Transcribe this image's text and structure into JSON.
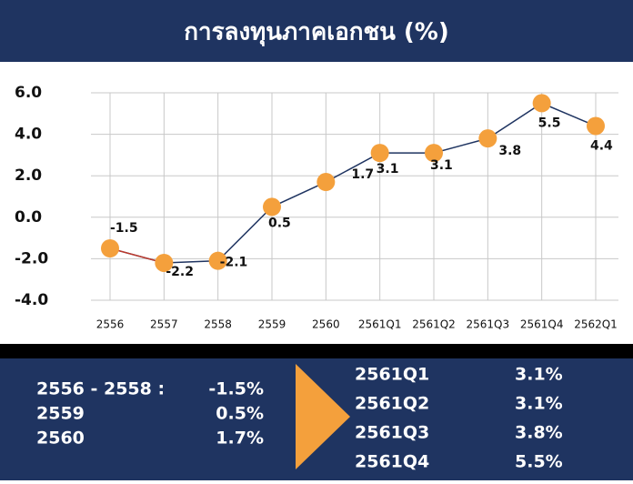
{
  "chart_data": {
    "type": "line",
    "title": "การลงทุนภาคเอกชน (%)",
    "categories": [
      "2556",
      "2557",
      "2558",
      "2559",
      "2560",
      "2561Q1",
      "2561Q2",
      "2561Q3",
      "2561Q4",
      "2562Q1"
    ],
    "values": [
      -1.5,
      -2.2,
      -2.1,
      0.5,
      1.7,
      3.1,
      3.1,
      3.8,
      5.5,
      4.4
    ],
    "color": "#1f3461",
    "first_segment_color": "#c0392b",
    "marker_color": "#f4a03c",
    "ylim": [
      -4,
      6
    ],
    "yticks": [
      {
        "value": -4,
        "label": "-4.0"
      },
      {
        "value": -2,
        "label": "-2.0"
      },
      {
        "value": 0,
        "label": "0.0"
      },
      {
        "value": 2,
        "label": "2.0"
      },
      {
        "value": 4,
        "label": "4.0"
      },
      {
        "value": 6,
        "label": "6.0"
      }
    ],
    "grid": true
  },
  "summary": {
    "left": [
      [
        "2556 - 2558 :",
        "-1.5%"
      ],
      [
        "2559",
        "0.5%"
      ],
      [
        "2560",
        "1.7%"
      ]
    ],
    "right": [
      [
        "2561Q1",
        "3.1%"
      ],
      [
        "2561Q2",
        "3.1%"
      ],
      [
        "2561Q3",
        "3.8%"
      ],
      [
        "2561Q4",
        "5.5%"
      ]
    ]
  }
}
